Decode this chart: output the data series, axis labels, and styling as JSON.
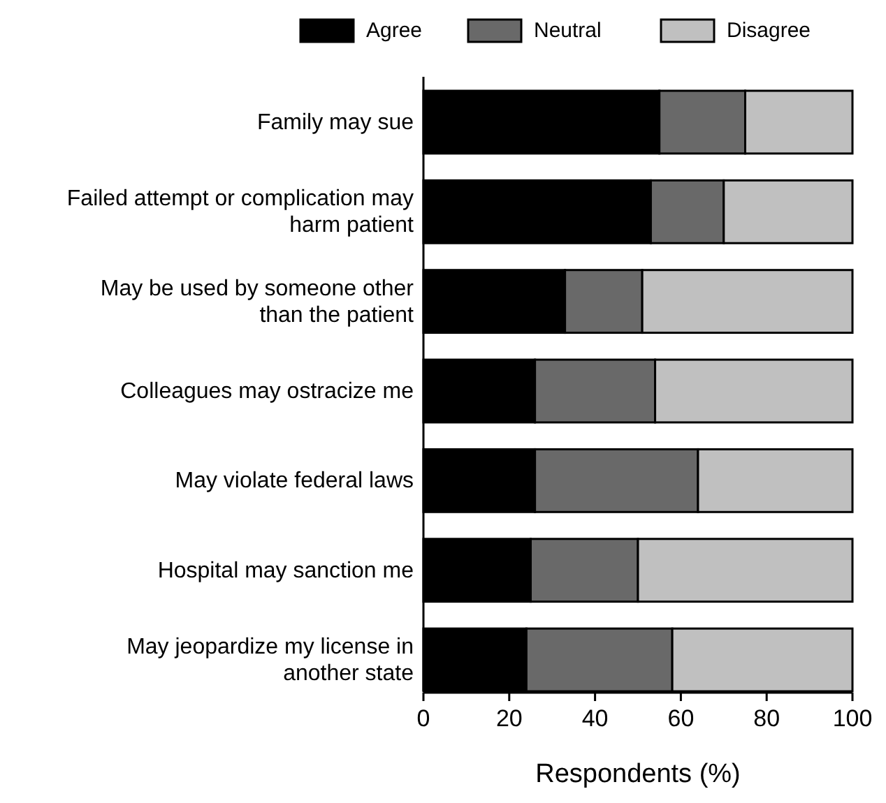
{
  "chart_data": {
    "type": "bar",
    "orientation": "horizontal",
    "stacked": true,
    "categories": [
      "Family may sue",
      "Failed attempt or complication may harm patient",
      "May be used by someone other than the patient",
      "Colleagues may ostracize me",
      "May violate federal laws",
      "Hospital may sanction me",
      "May jeopardize my license in another state"
    ],
    "series": [
      {
        "name": "Agree",
        "color": "#000000",
        "values": [
          55,
          53,
          33,
          26,
          26,
          25,
          24
        ]
      },
      {
        "name": "Neutral",
        "color": "#696969",
        "values": [
          20,
          17,
          18,
          28,
          38,
          25,
          34
        ]
      },
      {
        "name": "Disagree",
        "color": "#c0c0c0",
        "values": [
          25,
          30,
          49,
          46,
          36,
          50,
          42
        ]
      }
    ],
    "xlim": [
      0,
      100
    ],
    "xticks": [
      0,
      20,
      40,
      60,
      80,
      100
    ],
    "xlabel": "Respondents (%)",
    "legend": "top",
    "grid": false
  }
}
